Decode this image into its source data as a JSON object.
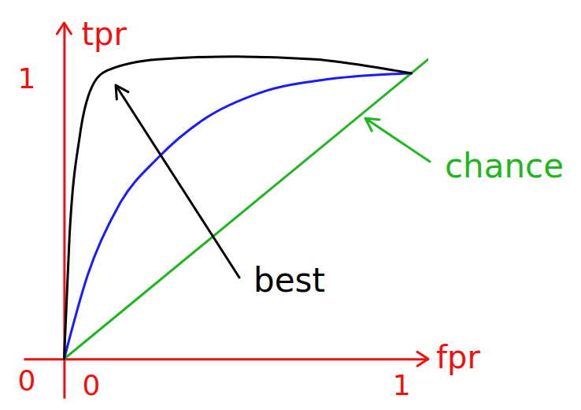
{
  "chart_data": {
    "type": "line",
    "x_label": "fpr",
    "y_label": "tpr",
    "xlim": [
      -0.12,
      1.08
    ],
    "ylim": [
      -0.14,
      1.2
    ],
    "xticks": [
      0,
      1
    ],
    "yticks": [
      0,
      1
    ],
    "grid": false,
    "series": [
      {
        "name": "chance",
        "color": "#22b422",
        "x": [
          0,
          1.08
        ],
        "values": [
          0,
          1.07
        ]
      },
      {
        "color": "#1a1aff",
        "x": [
          0,
          0.07,
          0.163,
          0.28,
          0.42,
          0.58,
          0.79,
          1.03
        ],
        "values": [
          0,
          0.3,
          0.55,
          0.72,
          0.86,
          0.95,
          1.0,
          1.02
        ]
      },
      {
        "name": "best",
        "color": "#000000",
        "x": [
          0,
          0.016,
          0.047,
          0.082,
          0.128,
          0.28,
          0.51,
          0.745,
          0.98,
          1.03
        ],
        "values": [
          0,
          0.437,
          0.8,
          0.97,
          1.03,
          1.07,
          1.08,
          1.07,
          1.03,
          1.02
        ]
      }
    ]
  }
}
